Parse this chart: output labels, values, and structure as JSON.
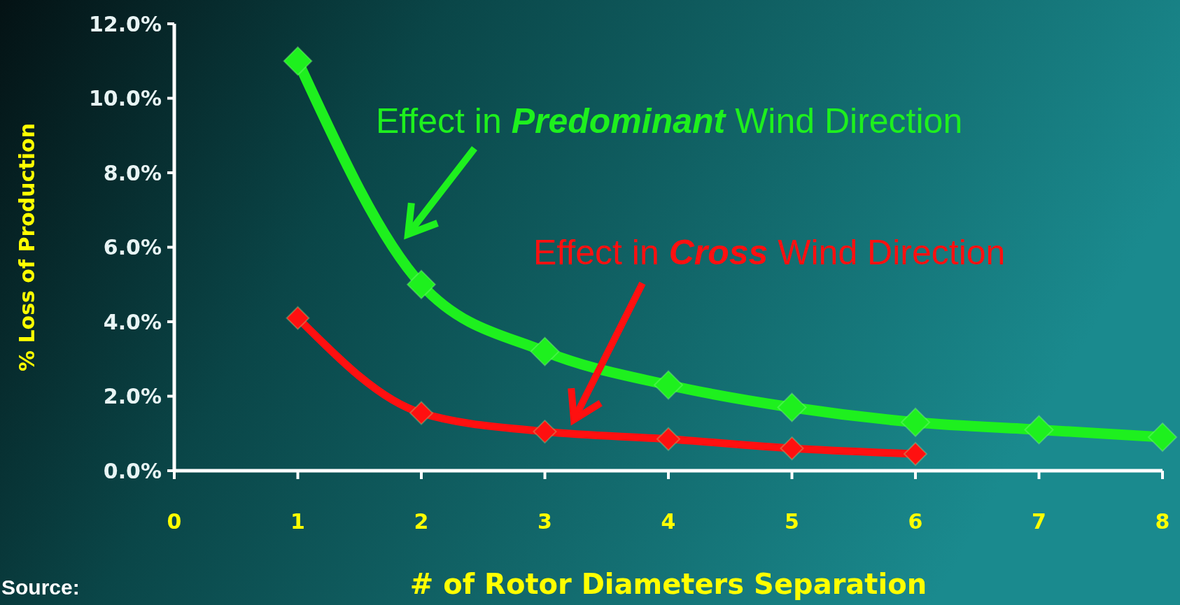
{
  "chart_data": {
    "type": "line",
    "xlabel": "# of Rotor Diameters Separation",
    "ylabel": "% Loss of Production",
    "xlim": [
      0,
      8
    ],
    "xticks": [
      0,
      1,
      2,
      3,
      4,
      5,
      6,
      7,
      8
    ],
    "ylim": [
      0,
      12
    ],
    "yticks": [
      {
        "value": 0,
        "label": "0.0%"
      },
      {
        "value": 2,
        "label": "2.0%"
      },
      {
        "value": 4,
        "label": "4.0%"
      },
      {
        "value": 6,
        "label": "6.0%"
      },
      {
        "value": 8,
        "label": "8.0%"
      },
      {
        "value": 10,
        "label": "10.0%"
      },
      {
        "value": 12,
        "label": "12.0%"
      }
    ],
    "marker": "diamond",
    "line_style": "solid",
    "series": [
      {
        "color": "#1ef01e",
        "x": [
          1,
          2,
          3,
          4,
          5,
          6,
          7,
          8
        ],
        "values": [
          11.0,
          5.0,
          3.2,
          2.3,
          1.7,
          1.3,
          1.1,
          0.9
        ]
      },
      {
        "color": "#ff1010",
        "x": [
          1,
          2,
          3,
          4,
          5,
          6
        ],
        "values": [
          4.1,
          1.55,
          1.05,
          0.85,
          0.6,
          0.45
        ]
      }
    ],
    "annotations": [
      "Effect in Predominant Wind Direction",
      "Effect in Cross Wind Direction",
      "Source:"
    ]
  }
}
